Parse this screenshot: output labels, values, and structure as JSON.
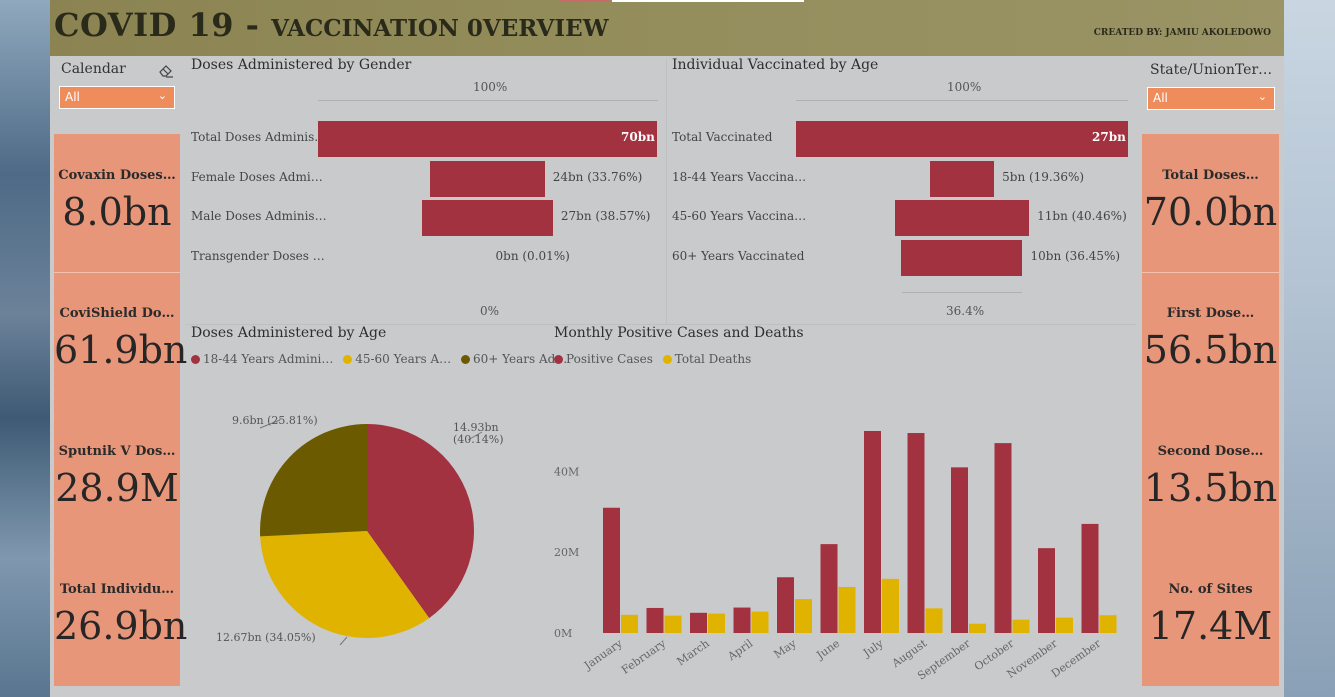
{
  "header": {
    "title_big": "COVID 19 - ",
    "title_small": "VACCINATION 0VERVIEW",
    "created_by": "CREATED BY: JAMIU AKOLEDOWO"
  },
  "slicers": {
    "calendar": {
      "label": "Calendar",
      "value": "All"
    },
    "state": {
      "label": "State/UnionTer…",
      "value": "All"
    }
  },
  "cards_left": [
    {
      "label": "Covaxin Doses…",
      "value": "8.0bn"
    },
    {
      "label": "CoviShield Do…",
      "value": "61.9bn"
    },
    {
      "label": "Sputnik V Dos…",
      "value": "28.9M"
    },
    {
      "label": "Total Individu…",
      "value": "26.9bn"
    }
  ],
  "cards_right": [
    {
      "label": "Total Doses…",
      "value": "70.0bn"
    },
    {
      "label": "First Dose…",
      "value": "56.5bn"
    },
    {
      "label": "Second Dose…",
      "value": "13.5bn"
    },
    {
      "label": "No. of Sites",
      "value": "17.4M"
    }
  ],
  "gender_chart": {
    "title": "Doses Administered by Gender",
    "top_pct": "100%",
    "bottom_pct": "0%",
    "rows": [
      {
        "label": "Total Doses Adminis…",
        "value": "70bn",
        "share": 1.0
      },
      {
        "label": "Female Doses Admi…",
        "value": "24bn (33.76%)",
        "share": 0.3376
      },
      {
        "label": "Male Doses Adminis…",
        "value": "27bn (38.57%)",
        "share": 0.3857
      },
      {
        "label": "Transgender Doses …",
        "value": "0bn (0.01%)",
        "share": 0.0001
      }
    ]
  },
  "age_vacc_chart": {
    "title": "Individual Vaccinated by Age",
    "top_pct": "100%",
    "bottom_pct": "36.4%",
    "rows": [
      {
        "label": "Total Vaccinated",
        "value": "27bn",
        "share": 1.0
      },
      {
        "label": "18-44 Years Vaccina…",
        "value": "5bn (19.36%)",
        "share": 0.1936
      },
      {
        "label": "45-60 Years Vaccina…",
        "value": "11bn (40.46%)",
        "share": 0.4046
      },
      {
        "label": "60+ Years Vaccinated",
        "value": "10bn (36.45%)",
        "share": 0.3645
      }
    ]
  },
  "pie_chart": {
    "title": "Doses Administered by Age",
    "legend": [
      "18-44 Years Admini…",
      "45-60 Years A…",
      "60+ Years Ad…"
    ],
    "colors": [
      "#a33240",
      "#e0b300",
      "#6b5a00"
    ],
    "labels": [
      "14.93bn\n(40.14%)",
      "12.67bn (34.05%)",
      "9.6bn (25.81%)"
    ]
  },
  "column_chart": {
    "title": "Monthly Positive Cases and Deaths",
    "legend": [
      "Positive Cases",
      "Total Deaths"
    ],
    "colors": [
      "#a33240",
      "#e0b300"
    ],
    "y_ticks": [
      "0M",
      "20M",
      "40M"
    ]
  },
  "chart_data": [
    {
      "type": "bar",
      "title": "Doses Administered by Gender",
      "categories": [
        "Total Doses Adminis…",
        "Female Doses Admi…",
        "Male Doses Adminis…",
        "Transgender Doses …"
      ],
      "values": [
        70,
        24,
        27,
        0
      ],
      "percent": [
        100,
        33.76,
        38.57,
        0.01
      ],
      "unit": "bn"
    },
    {
      "type": "bar",
      "title": "Individual Vaccinated by Age",
      "categories": [
        "Total Vaccinated",
        "18-44 Years Vaccina…",
        "45-60 Years Vaccina…",
        "60+ Years Vaccinated"
      ],
      "values": [
        27,
        5,
        11,
        10
      ],
      "percent": [
        100,
        19.36,
        40.46,
        36.45
      ],
      "unit": "bn"
    },
    {
      "type": "pie",
      "title": "Doses Administered by Age",
      "categories": [
        "18-44 Years Admini…",
        "45-60 Years A…",
        "60+ Years Ad…"
      ],
      "values": [
        14.93,
        12.67,
        9.6
      ],
      "percent": [
        40.14,
        34.05,
        25.81
      ],
      "unit": "bn"
    },
    {
      "type": "bar",
      "title": "Monthly Positive Cases and Deaths",
      "categories": [
        "January",
        "February",
        "March",
        "April",
        "May",
        "June",
        "July",
        "August",
        "September",
        "October",
        "November",
        "December"
      ],
      "series": [
        {
          "name": "Positive Cases",
          "values": [
            31,
            6.2,
            5,
            6.3,
            13.8,
            22,
            50,
            49.5,
            41,
            47,
            21,
            27
          ]
        },
        {
          "name": "Total Deaths",
          "values": [
            4.5,
            4.3,
            4.8,
            5.3,
            8.4,
            11.4,
            13.4,
            6.1,
            2.3,
            3.3,
            3.8,
            4.4
          ]
        }
      ],
      "ylim": [
        0,
        50
      ],
      "ylabel": "",
      "y_ticks": [
        "0M",
        "20M",
        "40M"
      ]
    }
  ]
}
